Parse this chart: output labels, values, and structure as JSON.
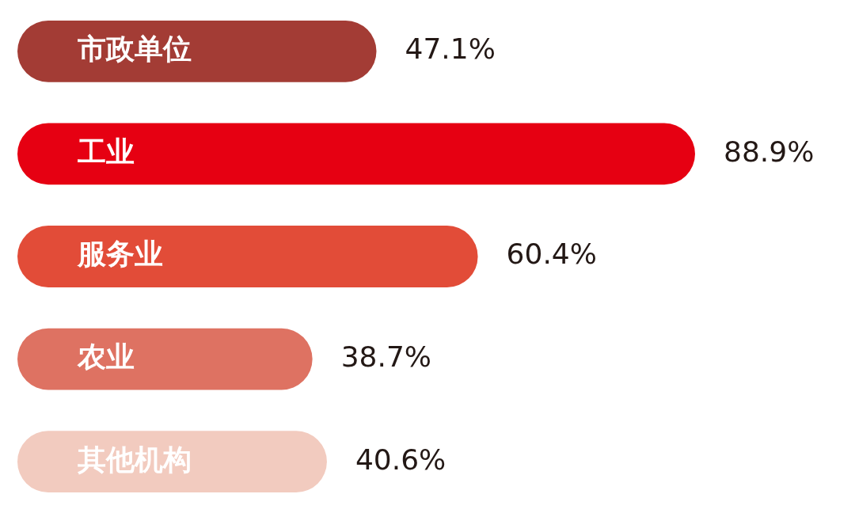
{
  "chart_data": {
    "type": "bar",
    "orientation": "horizontal",
    "categories": [
      "市政单位",
      "工业",
      "服务业",
      "农业",
      "其他机构"
    ],
    "values": [
      47.1,
      88.9,
      60.4,
      38.7,
      40.6
    ],
    "value_labels": [
      "47.1%",
      "88.9%",
      "60.4%",
      "38.7%",
      "40.6%"
    ],
    "colors": [
      "#a33c35",
      "#e60012",
      "#e24c38",
      "#de7262",
      "#f2cbbf"
    ],
    "legend": false,
    "tick_labels": false
  }
}
